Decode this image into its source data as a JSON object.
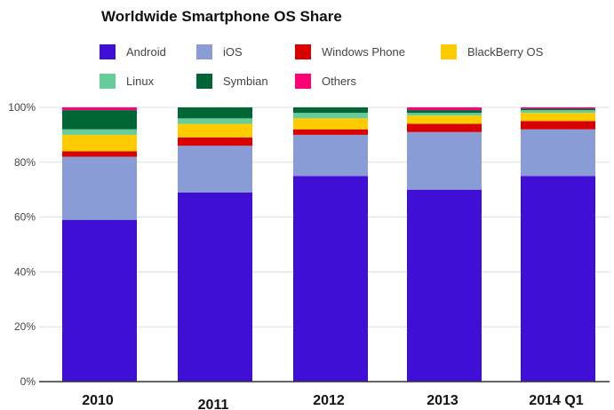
{
  "chart_data": {
    "type": "bar",
    "stacked": true,
    "title": "Worldwide Smartphone OS Share",
    "xlabel": "",
    "ylabel": "",
    "categories": [
      "2010",
      "2011",
      "2012",
      "2013",
      "2014 Q1"
    ],
    "y_ticks": [
      "0%",
      "20%",
      "40%",
      "60%",
      "80%",
      "100%"
    ],
    "ylim": [
      0,
      100
    ],
    "grid": true,
    "legend_position": "top",
    "series": [
      {
        "name": "Android",
        "color": "#3f0fd6",
        "values": [
          59,
          69,
          75,
          70,
          75
        ]
      },
      {
        "name": "iOS",
        "color": "#8a9cd6",
        "values": [
          23,
          17,
          15,
          21,
          17
        ]
      },
      {
        "name": "Windows Phone",
        "color": "#d90000",
        "values": [
          2,
          3,
          2,
          3,
          3
        ]
      },
      {
        "name": "BlackBerry OS",
        "color": "#ffcc00",
        "values": [
          6,
          5,
          4,
          3,
          3
        ]
      },
      {
        "name": "Linux",
        "color": "#66cc99",
        "values": [
          2,
          2,
          2,
          1,
          1
        ]
      },
      {
        "name": "Symbian",
        "color": "#006633",
        "values": [
          7,
          4,
          2,
          1,
          0.5
        ]
      },
      {
        "name": "Others",
        "color": "#ff0077",
        "values": [
          1,
          0,
          0,
          1,
          0.5
        ]
      }
    ]
  }
}
